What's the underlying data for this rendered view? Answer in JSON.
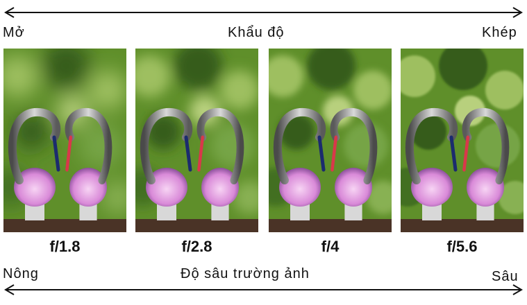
{
  "top_scale": {
    "left": "Mở",
    "center": "Khẩu độ",
    "right": "Khép"
  },
  "bottom_scale": {
    "left": "Nông",
    "center": "Độ sâu trường ảnh",
    "right": "Sâu"
  },
  "apertures": [
    {
      "label": "f/1.8",
      "blur": 14
    },
    {
      "label": "f/2.8",
      "blur": 9
    },
    {
      "label": "f/4",
      "blur": 5
    },
    {
      "label": "f/5.6",
      "blur": 1.5
    }
  ],
  "colors": {
    "bg_green": "#5f8f2a",
    "leaf_light": "#a9c86a",
    "leaf_dark": "#2e5414",
    "bulb_pink": "#d98ad8",
    "beak_red": "#d9384a",
    "beak_blue": "#1b2b6e",
    "ledge": "#4a3326"
  }
}
